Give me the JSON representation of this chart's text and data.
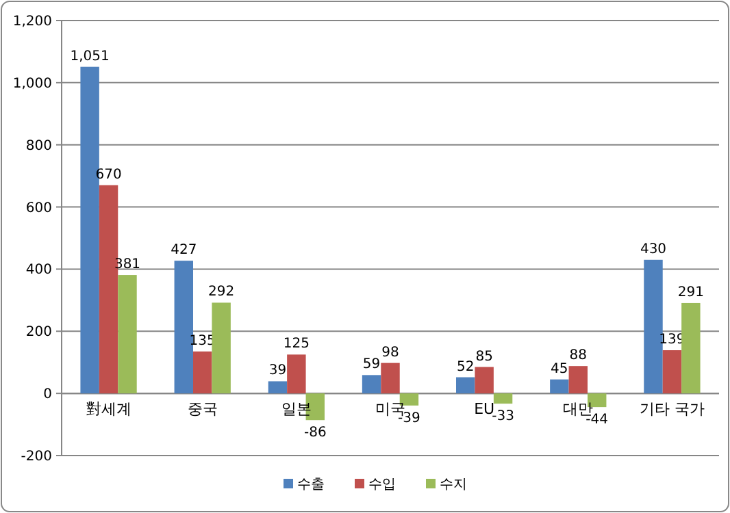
{
  "chart_data": {
    "type": "bar",
    "categories": [
      "對세계",
      "중국",
      "일본",
      "미국",
      "EU",
      "대만",
      "기타 국가"
    ],
    "series": [
      {
        "name": "수출",
        "color": "#4f81bd",
        "values": [
          1051,
          427,
          39,
          59,
          52,
          45,
          430
        ],
        "value_labels": [
          "1,051",
          "427",
          "39",
          "59",
          "52",
          "45",
          "430"
        ]
      },
      {
        "name": "수입",
        "color": "#c0504d",
        "values": [
          670,
          135,
          125,
          98,
          85,
          88,
          139
        ],
        "value_labels": [
          "670",
          "135",
          "125",
          "98",
          "85",
          "88",
          "139"
        ]
      },
      {
        "name": "수지",
        "color": "#9bbb59",
        "values": [
          381,
          292,
          -86,
          -39,
          -33,
          -44,
          291
        ],
        "value_labels": [
          "381",
          "292",
          "-86",
          "-39",
          "-33",
          "-44",
          "291"
        ]
      }
    ],
    "ylim": [
      -200,
      1200
    ],
    "yticks": [
      -200,
      0,
      200,
      400,
      600,
      800,
      {
        "value": 1000,
        "label": "1,000"
      },
      {
        "value": 1200,
        "label": "1,200"
      }
    ],
    "grid": "y",
    "legend": "bottom"
  }
}
